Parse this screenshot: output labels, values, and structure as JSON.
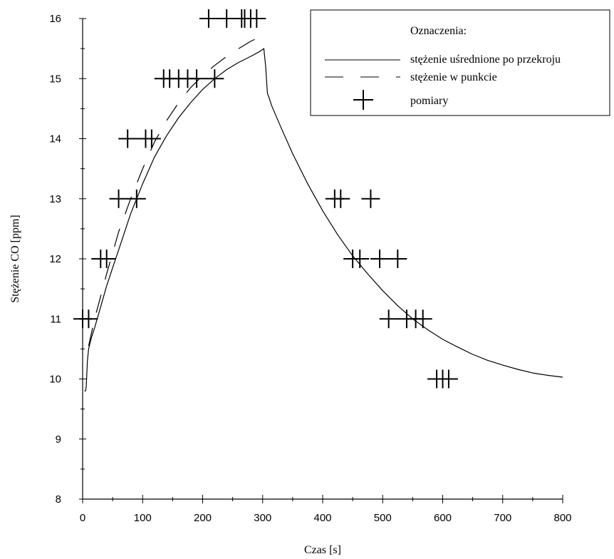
{
  "chart_data": {
    "type": "line",
    "title": "",
    "xlabel": "Czas [s]",
    "ylabel": "Stężenie CO [ppm]",
    "xlim": [
      0,
      800
    ],
    "ylim": [
      8,
      16
    ],
    "x_ticks": [
      0,
      100,
      200,
      300,
      400,
      500,
      600,
      700,
      800
    ],
    "y_ticks": [
      8,
      9,
      10,
      11,
      12,
      13,
      14,
      15,
      16
    ],
    "grid": false,
    "legend_position": "top-right",
    "legend_title": "Oznaczenia:",
    "series": [
      {
        "name": "stężenie uśrednione po przekroju",
        "style": "solid",
        "x": [
          3,
          5,
          6,
          8,
          10,
          15,
          20,
          30,
          40,
          50,
          60,
          80,
          100,
          120,
          140,
          160,
          180,
          200,
          220,
          240,
          260,
          280,
          295,
          302,
          305,
          307,
          308,
          310,
          315,
          330,
          350,
          375,
          400,
          425,
          450,
          475,
          500,
          525,
          550,
          575,
          600,
          625,
          650,
          675,
          700,
          725,
          750,
          775,
          800
        ],
        "y": [
          9.8,
          9.8,
          9.88,
          10.3,
          10.5,
          10.7,
          10.85,
          11.2,
          11.55,
          11.85,
          12.15,
          12.75,
          13.25,
          13.7,
          14.05,
          14.35,
          14.6,
          14.82,
          15.0,
          15.15,
          15.27,
          15.37,
          15.45,
          15.5,
          15.2,
          14.9,
          14.75,
          14.7,
          14.55,
          14.2,
          13.75,
          13.25,
          12.8,
          12.4,
          12.05,
          11.75,
          11.47,
          11.22,
          11.0,
          10.82,
          10.66,
          10.53,
          10.41,
          10.31,
          10.23,
          10.16,
          10.1,
          10.06,
          10.03
        ]
      },
      {
        "name": "stężenie w punkcie",
        "style": "dashed",
        "x": [
          10,
          20,
          40,
          60,
          80,
          100,
          120,
          140,
          160,
          180,
          200,
          220,
          240,
          260,
          280,
          290
        ],
        "y": [
          10.55,
          11.0,
          11.75,
          12.45,
          13.0,
          13.5,
          13.95,
          14.3,
          14.6,
          14.85,
          15.05,
          15.22,
          15.37,
          15.5,
          15.62,
          15.67
        ]
      },
      {
        "name": "pomiary",
        "style": "marker-plus",
        "points": [
          [
            0,
            11
          ],
          [
            10,
            11
          ],
          [
            30,
            12
          ],
          [
            40,
            12
          ],
          [
            60,
            13
          ],
          [
            90,
            13
          ],
          [
            75,
            14
          ],
          [
            105,
            14
          ],
          [
            115,
            14
          ],
          [
            135,
            15
          ],
          [
            145,
            15
          ],
          [
            160,
            15
          ],
          [
            175,
            15
          ],
          [
            190,
            15
          ],
          [
            220,
            15
          ],
          [
            210,
            16
          ],
          [
            240,
            16
          ],
          [
            265,
            16
          ],
          [
            270,
            16
          ],
          [
            280,
            16
          ],
          [
            290,
            16
          ],
          [
            420,
            13
          ],
          [
            430,
            13
          ],
          [
            480,
            13
          ],
          [
            450,
            12
          ],
          [
            462,
            12
          ],
          [
            495,
            12
          ],
          [
            525,
            12
          ],
          [
            510,
            11
          ],
          [
            540,
            11
          ],
          [
            555,
            11
          ],
          [
            567,
            11
          ],
          [
            590,
            10
          ],
          [
            600,
            10
          ],
          [
            610,
            10
          ]
        ]
      }
    ]
  }
}
